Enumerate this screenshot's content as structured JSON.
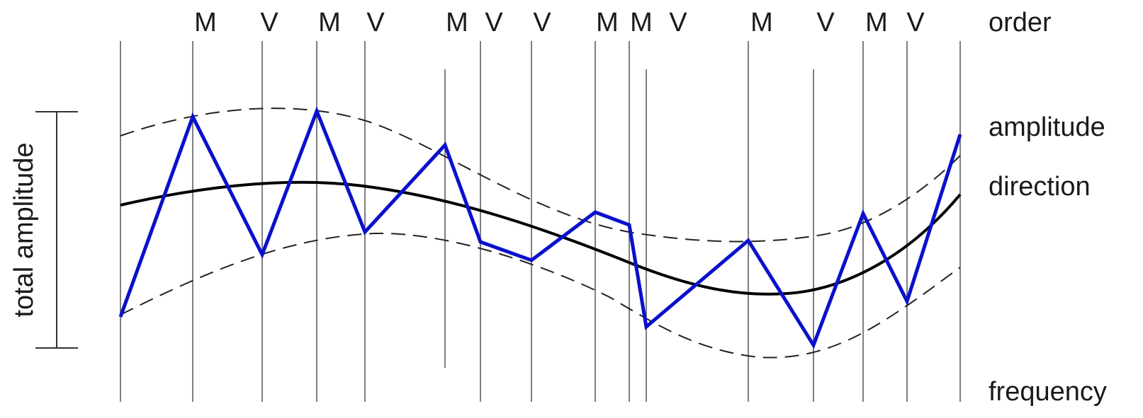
{
  "labels": {
    "order": "order",
    "amplitude": "amplitude",
    "direction": "direction",
    "frequency": "frequency",
    "total_amplitude": "total amplitude"
  },
  "extrema_letters": [
    "M",
    "V",
    "M",
    "V",
    "M",
    "V",
    "V",
    "M",
    "M",
    "V",
    "M",
    "V",
    "M",
    "V"
  ],
  "colors": {
    "signal": "#0a10cc",
    "trend": "#000000",
    "envelope": "#222222"
  },
  "icons": []
}
